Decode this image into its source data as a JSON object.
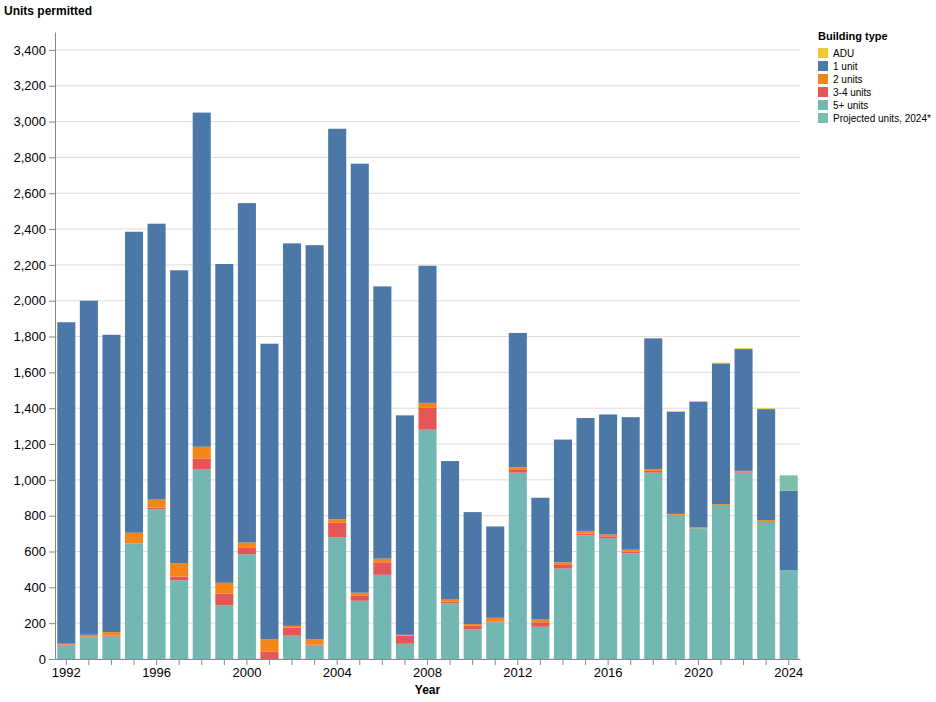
{
  "chart_data": {
    "type": "bar",
    "stacked": true,
    "y_label": "Units permitted",
    "x_label": "Year",
    "legend_title": "Building type",
    "legend": "right",
    "grid": true,
    "categories": [
      "1992",
      null,
      null,
      null,
      "1996",
      null,
      null,
      null,
      "2000",
      null,
      null,
      null,
      "2004",
      null,
      null,
      null,
      "2008",
      null,
      null,
      null,
      "2012",
      null,
      null,
      null,
      "2016",
      null,
      null,
      null,
      "2020",
      null,
      null,
      null,
      "2024"
    ],
    "ylim": [
      0,
      3500
    ],
    "yticks": [
      0,
      200,
      400,
      600,
      800,
      {
        "value": 1000,
        "label": "1,000"
      },
      {
        "value": 1200,
        "label": "1,200"
      },
      {
        "value": 1400,
        "label": "1,400"
      },
      {
        "value": 1600,
        "label": "1,600"
      },
      {
        "value": 1800,
        "label": "1,800"
      },
      {
        "value": 2000,
        "label": "2,000"
      },
      {
        "value": 2200,
        "label": "2,200"
      },
      {
        "value": 2400,
        "label": "2,400"
      },
      {
        "value": 2600,
        "label": "2,600"
      },
      {
        "value": 2800,
        "label": "2,800"
      },
      {
        "value": 3000,
        "label": "3,000"
      },
      {
        "value": 3200,
        "label": "3,200"
      },
      {
        "value": 3400,
        "label": "3,400"
      }
    ],
    "series": [
      {
        "name": "ADU",
        "color": "#eeca3b",
        "values": [
          0,
          0,
          0,
          0,
          0,
          0,
          0,
          0,
          0,
          0,
          0,
          0,
          0,
          0,
          0,
          0,
          0,
          0,
          0,
          0,
          0,
          0,
          0,
          0,
          0,
          0,
          0,
          5,
          5,
          5,
          5,
          5,
          0
        ]
      },
      {
        "name": "1 unit",
        "color": "#4c78a8",
        "values": [
          1795,
          1865,
          1660,
          1680,
          1540,
          1635,
          1865,
          1780,
          1895,
          1650,
          2135,
          2200,
          2180,
          2395,
          1520,
          1225,
          765,
          770,
          625,
          510,
          750,
          680,
          685,
          630,
          670,
          740,
          730,
          570,
          700,
          785,
          680,
          620,
          445
        ]
      },
      {
        "name": "2 units",
        "color": "#f58518",
        "values": [
          5,
          10,
          20,
          60,
          45,
          75,
          65,
          60,
          30,
          70,
          10,
          30,
          20,
          15,
          20,
          5,
          25,
          15,
          10,
          20,
          15,
          15,
          15,
          15,
          10,
          10,
          10,
          5,
          5,
          5,
          5,
          10,
          0
        ]
      },
      {
        "name": "3-4 units",
        "color": "#e45756",
        "values": [
          5,
          5,
          5,
          0,
          10,
          20,
          60,
          65,
          35,
          40,
          45,
          5,
          80,
          30,
          70,
          45,
          125,
          10,
          20,
          5,
          15,
          25,
          20,
          10,
          10,
          10,
          10,
          0,
          0,
          0,
          5,
          0,
          0
        ]
      },
      {
        "name": "5+ units",
        "color": "#72b7b2",
        "values": [
          75,
          120,
          125,
          645,
          835,
          440,
          1060,
          300,
          585,
          0,
          130,
          75,
          680,
          325,
          470,
          85,
          1280,
          310,
          165,
          205,
          1040,
          180,
          505,
          690,
          675,
          590,
          1040,
          805,
          730,
          860,
          1040,
          765,
          495
        ]
      },
      {
        "name": "Projected units, 2024*",
        "color": "#7ac0ac",
        "values": [
          null,
          null,
          null,
          null,
          null,
          null,
          null,
          null,
          null,
          null,
          null,
          null,
          null,
          null,
          null,
          null,
          null,
          null,
          null,
          null,
          null,
          null,
          null,
          null,
          null,
          null,
          null,
          null,
          null,
          null,
          null,
          null,
          85
        ]
      }
    ]
  }
}
